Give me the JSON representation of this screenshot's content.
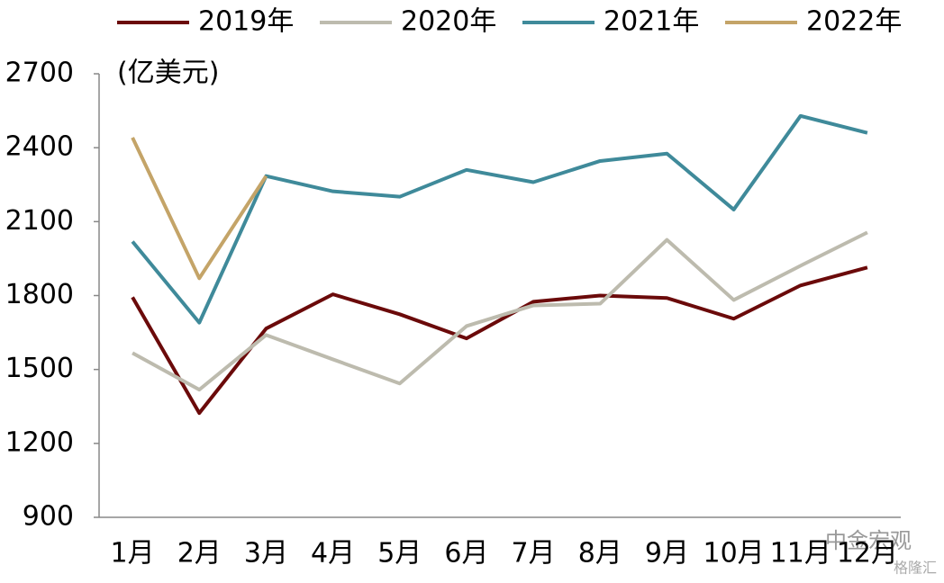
{
  "chart_data": {
    "type": "line",
    "y_label": "(亿美元)",
    "categories": [
      "1月",
      "2月",
      "3月",
      "4月",
      "5月",
      "6月",
      "7月",
      "8月",
      "9月",
      "10月",
      "11月",
      "12月"
    ],
    "series": [
      {
        "name": "2019年",
        "color": "#6b0a0a",
        "values": [
          1793,
          1323,
          1666,
          1805,
          1724,
          1626,
          1775,
          1800,
          1790,
          1706,
          1841,
          1914
        ]
      },
      {
        "name": "2020年",
        "color": "#bdbbae",
        "values": [
          1567,
          1418,
          1640,
          1541,
          1443,
          1676,
          1760,
          1767,
          2026,
          1782,
          1921,
          2056
        ]
      },
      {
        "name": "2021年",
        "color": "#3f8a9a",
        "values": [
          2019,
          1690,
          2285,
          2223,
          2201,
          2310,
          2260,
          2346,
          2376,
          2149,
          2529,
          2460
        ]
      },
      {
        "name": "2022年",
        "color": "#c4a468",
        "values": [
          2441,
          1870,
          2285,
          null,
          null,
          null,
          null,
          null,
          null,
          null,
          null,
          null
        ]
      }
    ],
    "ylim": [
      900,
      2700
    ],
    "yticks": [
      900,
      1200,
      1500,
      1800,
      2100,
      2400,
      2700
    ],
    "legend": "top",
    "watermark": "中金宏观",
    "source_mark": "格隆汇"
  }
}
